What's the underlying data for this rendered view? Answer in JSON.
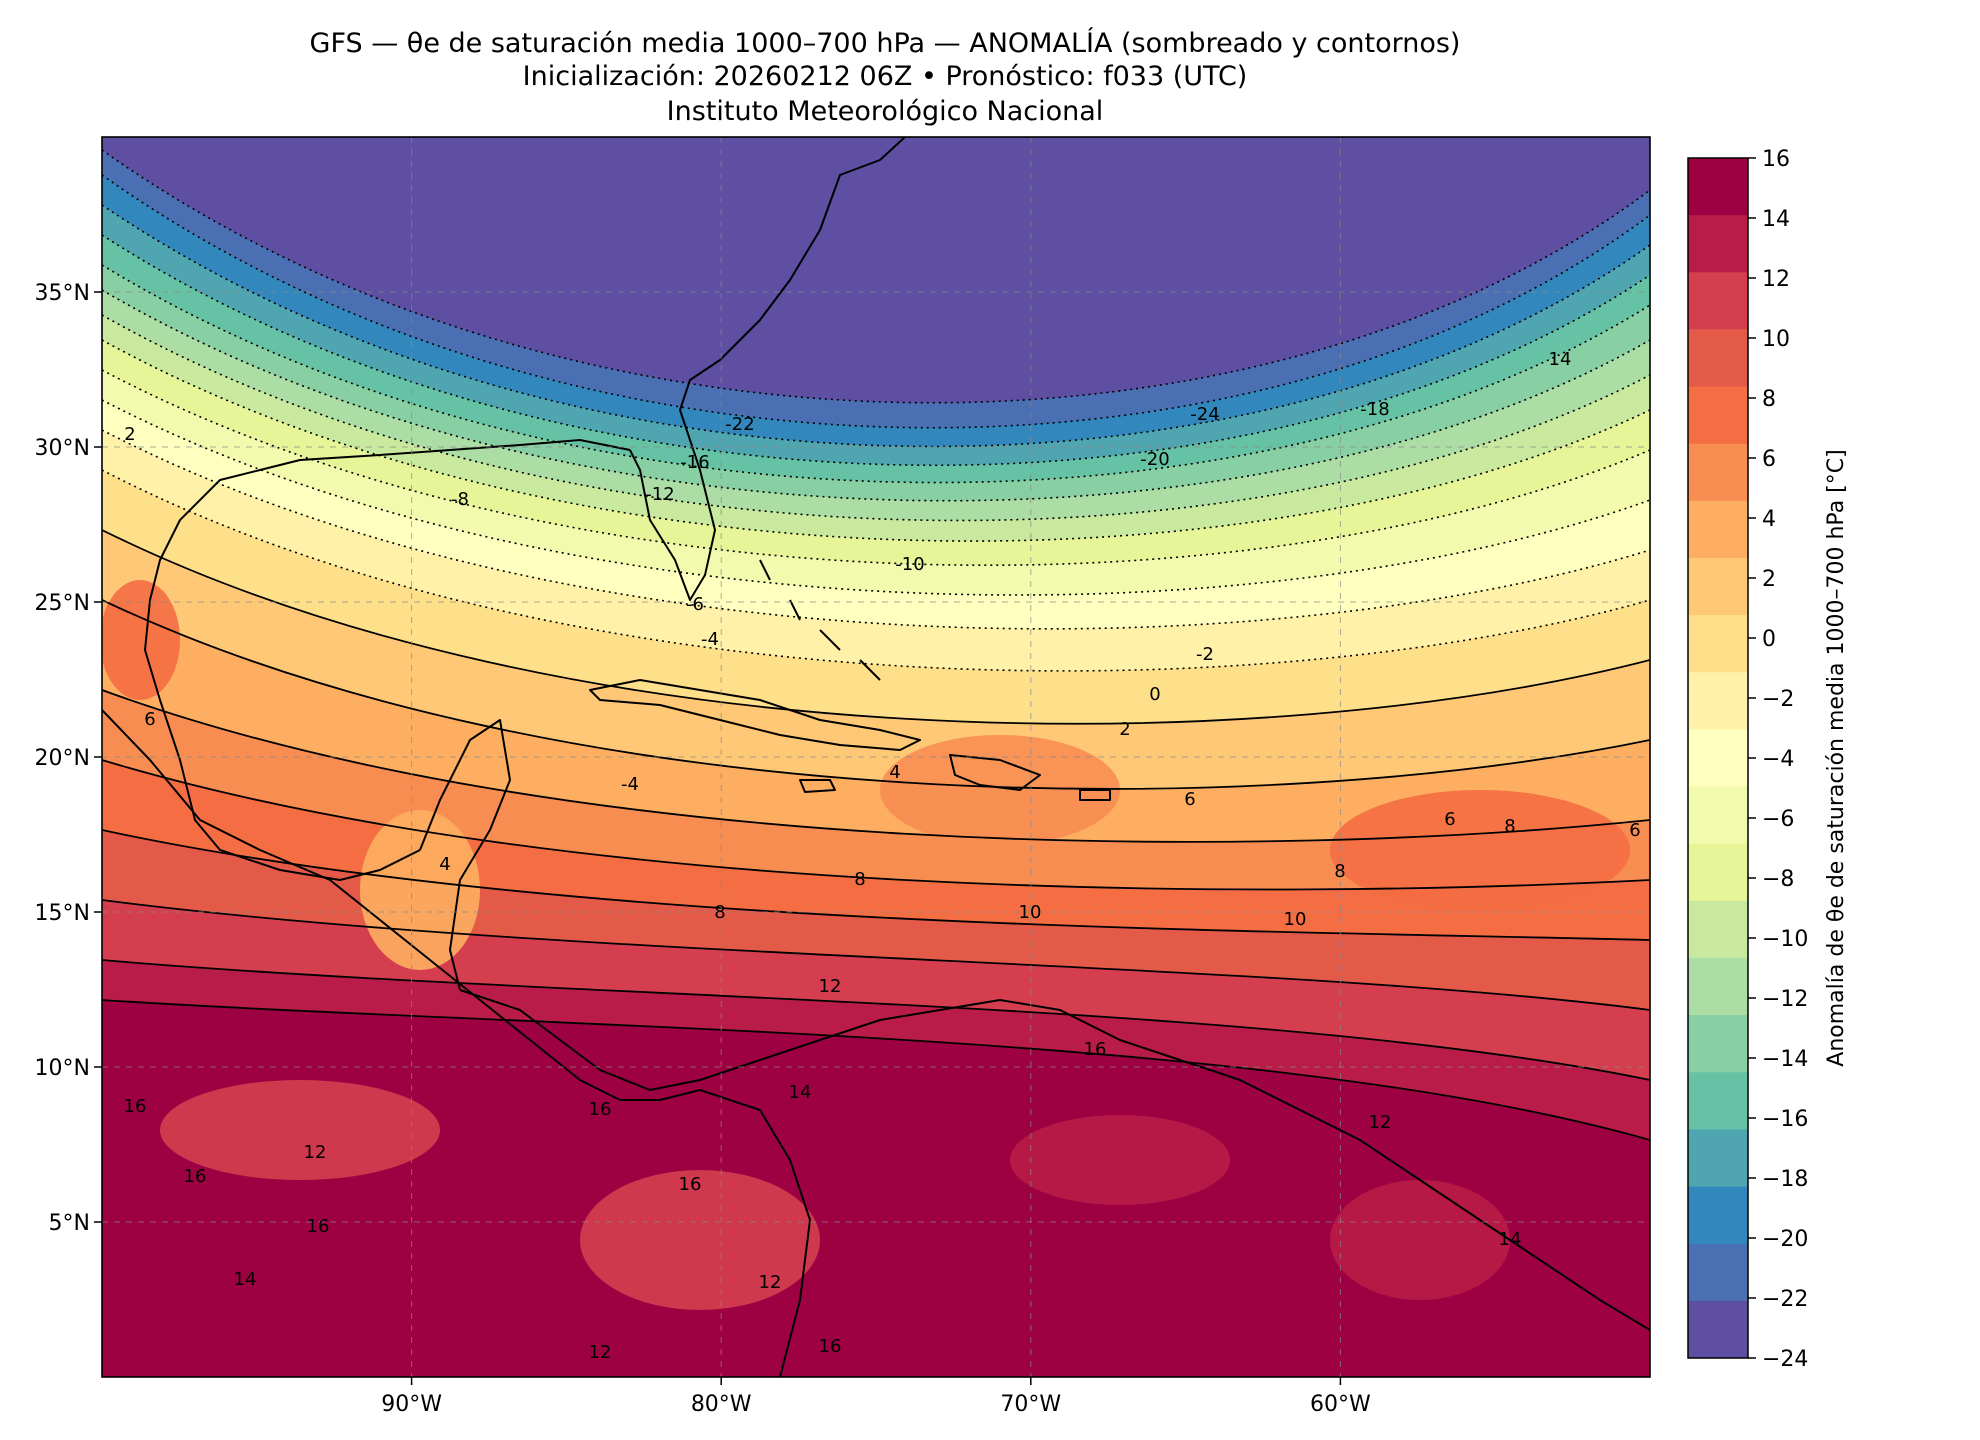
{
  "title": {
    "line1": "GFS — θe de saturación media 1000–700 hPa — ANOMALÍA (sombreado y contornos)",
    "line2": "Inicialización: 20260212 06Z   •   Pronóstico: f033 (UTC)",
    "line3": "Instituto Meteorológico Nacional"
  },
  "map": {
    "extent": {
      "lon_min": -100,
      "lon_max": -50,
      "lat_min": 0,
      "lat_max": 40
    },
    "lat_ticks": [
      "35°N",
      "30°N",
      "25°N",
      "20°N",
      "15°N",
      "10°N",
      "5°N"
    ],
    "lon_ticks": [
      "90°W",
      "80°W",
      "70°W",
      "60°W"
    ],
    "gridlines": "dashed",
    "contour_labels": [
      "-24",
      "-22",
      "-20",
      "-18",
      "-16",
      "-14",
      "-12",
      "-10",
      "-8",
      "-6",
      "-4",
      "-2",
      "0",
      "2",
      "4",
      "6",
      "8",
      "10",
      "12",
      "14",
      "16"
    ]
  },
  "colorbar": {
    "label": "Anomalía de θe de saturación media 1000–700 hPa [°C]",
    "ticks": [
      "16",
      "14",
      "12",
      "10",
      "8",
      "6",
      "4",
      "2",
      "0",
      "−2",
      "−4",
      "−6",
      "−8",
      "−10",
      "−12",
      "−14",
      "−16",
      "−18",
      "−20",
      "−22",
      "−24"
    ],
    "colors": [
      "#9e0142",
      "#b91c48",
      "#d53e4f",
      "#e45a49",
      "#f46d43",
      "#f88d52",
      "#fdae61",
      "#fec877",
      "#fee08b",
      "#fff1a8",
      "#ffffbf",
      "#f2faae",
      "#e6f598",
      "#c8e99e",
      "#abdda4",
      "#88cfa4",
      "#66c2a5",
      "#4fa6b0",
      "#3288bd",
      "#4a6fb2",
      "#5e4fa2"
    ]
  }
}
